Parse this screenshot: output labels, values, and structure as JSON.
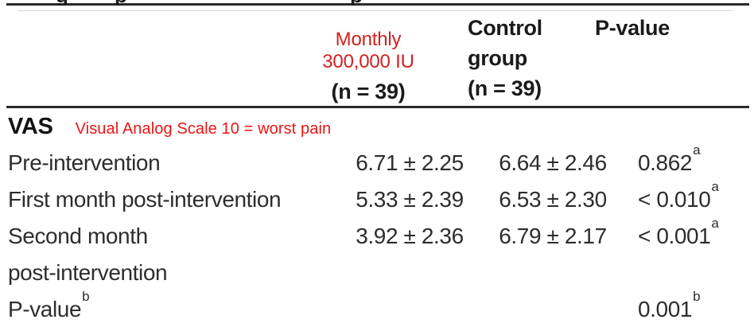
{
  "page": {
    "cropped_caption_fragments": [
      "g",
      "p",
      "p"
    ]
  },
  "header": {
    "treatment_col": {
      "line1": "Monthly",
      "line2": "300,000 IU",
      "n_label": "(n = 39)"
    },
    "control_col": {
      "line1": "Control",
      "line2": "group",
      "n_label": "(n = 39)"
    },
    "pvalue_col": {
      "label": "P-value"
    }
  },
  "section": {
    "label": "VAS",
    "annotation": "Visual Analog Scale 10 = worst pain"
  },
  "rows": [
    {
      "label": "Pre-intervention",
      "label_sup": "",
      "treatment": "6.71 ± 2.25",
      "control": "6.64 ± 2.46",
      "p_value": "0.862",
      "p_sup": "a"
    },
    {
      "label": "First month post-intervention",
      "label_sup": "",
      "treatment": "5.33 ± 2.39",
      "control": "6.53 ± 2.30",
      "p_value": "< 0.010",
      "p_sup": "a"
    },
    {
      "label": "Second month\npost-intervention",
      "label_sup": "",
      "treatment": "3.92 ± 2.36",
      "control": "6.79 ± 2.17",
      "p_value": "< 0.001",
      "p_sup": "a"
    },
    {
      "label": "P-value",
      "label_sup": "b",
      "treatment": "",
      "control": "",
      "p_value": "0.001",
      "p_sup": "b"
    }
  ],
  "colors": {
    "accent_red_header": "#d4201f",
    "accent_red_annotation": "#ed1414",
    "text_black": "#231f20",
    "rule_black": "#2a2a2a"
  }
}
